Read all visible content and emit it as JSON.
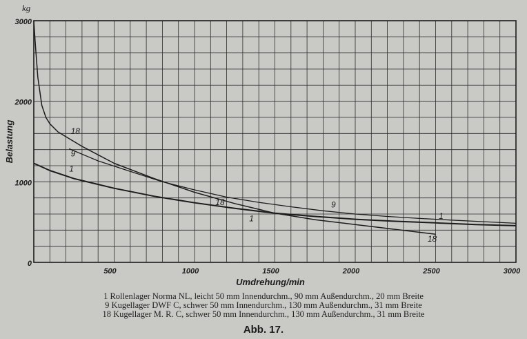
{
  "chart_data": {
    "type": "line",
    "xlabel": "Umdrehung/min",
    "ylabel": "Belastung",
    "yunit": "kg",
    "xlim": [
      0,
      3000
    ],
    "ylim": [
      0,
      3000
    ],
    "xticks": [
      500,
      1000,
      1500,
      2000,
      2500,
      3000
    ],
    "yticks": [
      0,
      1000,
      2000,
      3000
    ],
    "grid": true,
    "series": [
      {
        "name": "1",
        "x": [
          0,
          100,
          250,
          500,
          750,
          1000,
          1250,
          1500,
          1750,
          2000,
          2250,
          2500,
          2750,
          3000
        ],
        "y": [
          1230,
          1140,
          1040,
          920,
          820,
          740,
          670,
          610,
          570,
          535,
          510,
          490,
          470,
          455
        ]
      },
      {
        "name": "9",
        "x": [
          220,
          400,
          600,
          800,
          1000,
          1200,
          1400,
          1600,
          1800,
          2000,
          2200,
          2400,
          2600,
          2800,
          3000
        ],
        "y": [
          1410,
          1260,
          1130,
          1000,
          900,
          810,
          745,
          690,
          640,
          600,
          570,
          545,
          525,
          505,
          485
        ]
      },
      {
        "name": "18",
        "x": [
          0,
          10,
          25,
          50,
          75,
          100,
          150,
          200,
          300,
          500,
          750,
          1000,
          1250,
          1500,
          1750,
          2000,
          2250,
          2500
        ],
        "y": [
          3000,
          2700,
          2300,
          1950,
          1800,
          1720,
          1620,
          1560,
          1440,
          1230,
          1040,
          870,
          730,
          610,
          530,
          470,
          410,
          350
        ]
      }
    ],
    "legend": [
      "1 Rollenlager Norma NL, leicht 50 mm Innendurchm., 90 mm Außendurchm., 20 mm Breite",
      "9 Kugellager DWF C, schwer 50 mm Innendurchm., 130 mm Außendurchm., 31 mm Breite",
      "18 Kugellager M. R. C, schwer 50 mm Innendurchm., 130 mm Außendurchm., 31 mm Breite"
    ],
    "caption": "Abb. 17."
  },
  "colors": {
    "paper": "#c9c9c6",
    "ink": "#1c1c1c",
    "grid": "#2a2a2a"
  }
}
